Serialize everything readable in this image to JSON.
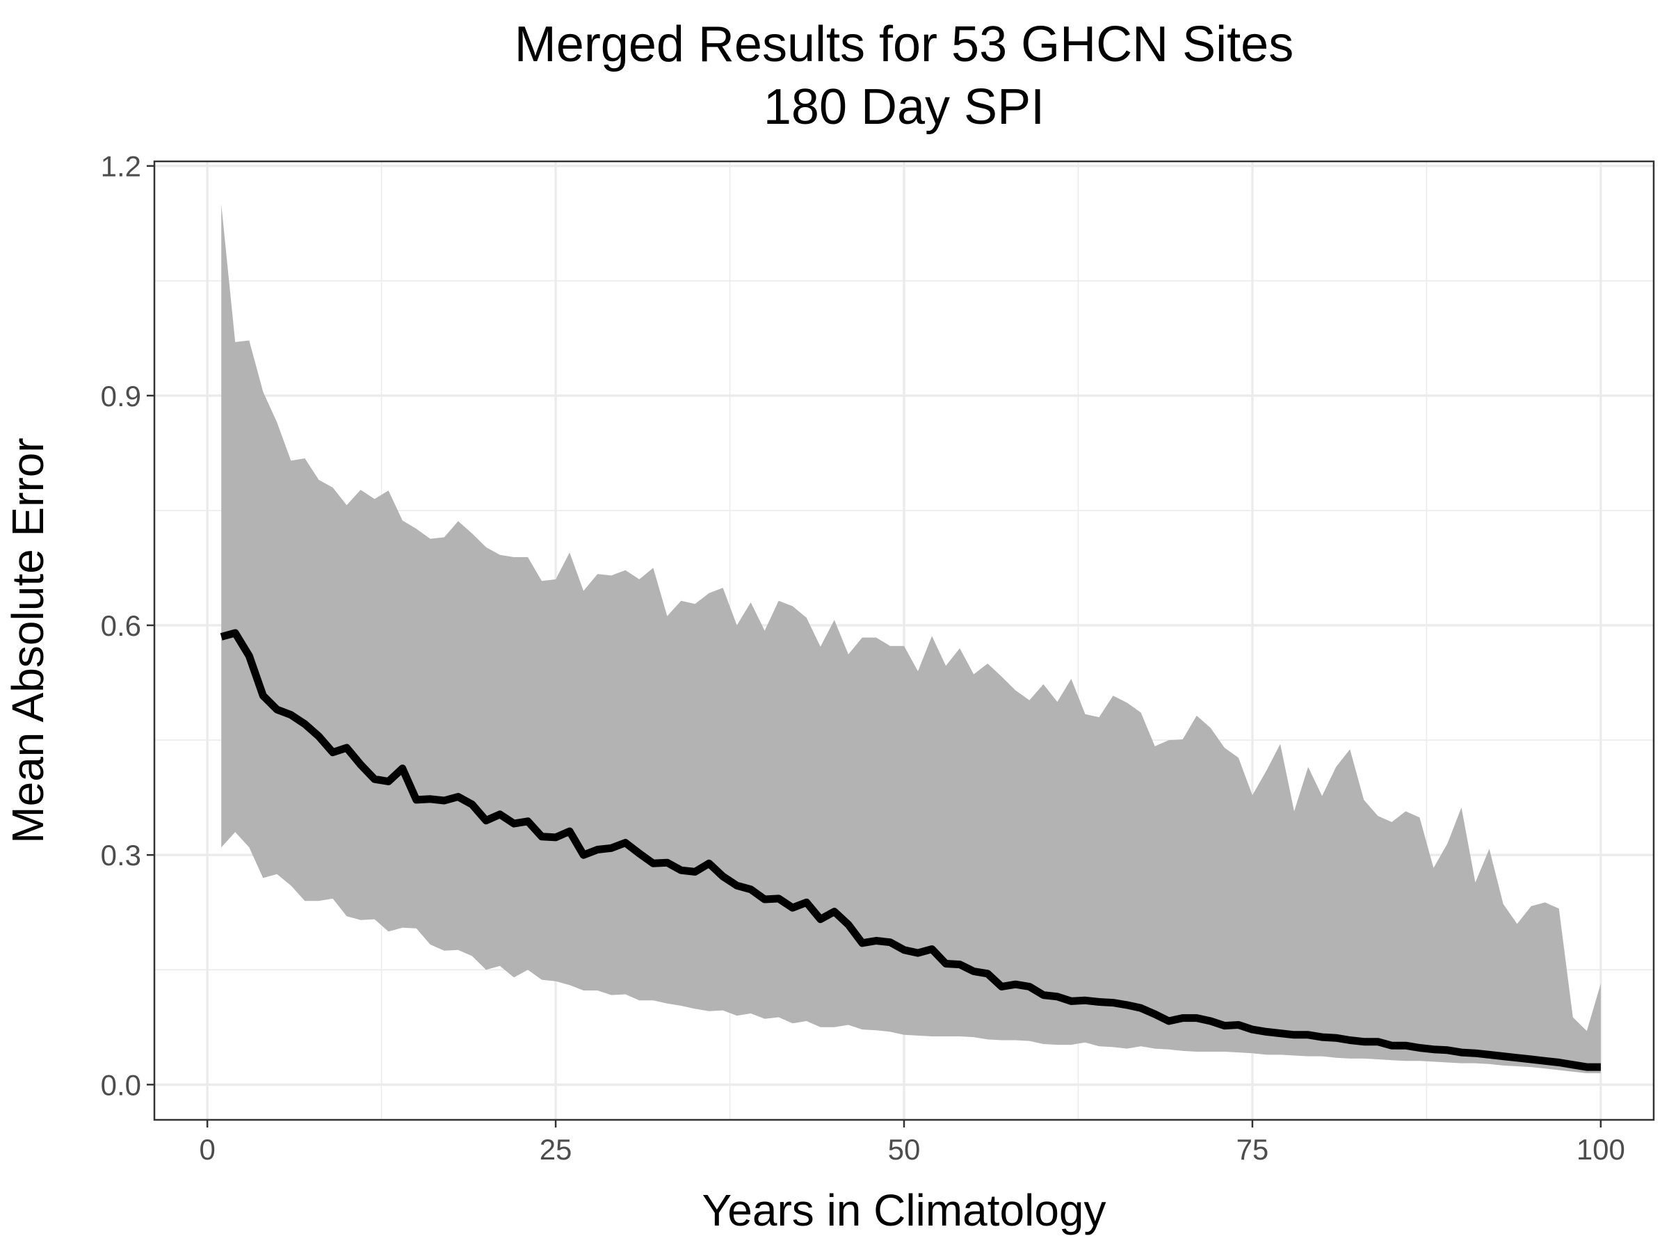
{
  "chart_data": {
    "type": "area",
    "title": "Merged Results for 53 GHCN Sites",
    "subtitle": "180 Day SPI",
    "xlabel": "Years in Climatology",
    "ylabel": "Mean Absolute Error",
    "xlim": [
      -3.8,
      103.8
    ],
    "ylim": [
      -0.046,
      1.206
    ],
    "x_ticks": [
      0,
      25,
      50,
      75,
      100
    ],
    "y_ticks": [
      0.0,
      0.3,
      0.6,
      0.9,
      1.2
    ],
    "x_tick_labels": [
      "0",
      "25",
      "50",
      "75",
      "100"
    ],
    "y_tick_labels": [
      "0.0",
      "0.3",
      "0.6",
      "0.9",
      "1.2"
    ],
    "grid": true,
    "legend": "none",
    "colors": {
      "band": "#b3b3b3",
      "line": "#000000",
      "grid": "#ebebeb",
      "panel_border": "#333333"
    },
    "series": [
      {
        "type": "band",
        "x": [
          1,
          2,
          3,
          4,
          5,
          6,
          7,
          8,
          9,
          10,
          11,
          12,
          13,
          14,
          15,
          16,
          17,
          18,
          19,
          20,
          21,
          22,
          23,
          24,
          25,
          26,
          27,
          28,
          29,
          30,
          31,
          32,
          33,
          34,
          35,
          36,
          37,
          38,
          39,
          40,
          41,
          42,
          43,
          44,
          45,
          46,
          47,
          48,
          49,
          50,
          51,
          52,
          53,
          54,
          55,
          56,
          57,
          58,
          59,
          60,
          61,
          62,
          63,
          64,
          65,
          66,
          67,
          68,
          69,
          70,
          71,
          72,
          73,
          74,
          75,
          76,
          77,
          78,
          79,
          80,
          81,
          82,
          83,
          84,
          85,
          86,
          87,
          88,
          89,
          90,
          91,
          92,
          93,
          94,
          95,
          96,
          97,
          98,
          99,
          100
        ],
        "lower": [
          0.31,
          0.33,
          0.31,
          0.27,
          0.275,
          0.26,
          0.24,
          0.24,
          0.243,
          0.22,
          0.215,
          0.216,
          0.2,
          0.205,
          0.204,
          0.183,
          0.175,
          0.176,
          0.168,
          0.15,
          0.155,
          0.14,
          0.15,
          0.137,
          0.135,
          0.13,
          0.123,
          0.123,
          0.117,
          0.118,
          0.11,
          0.11,
          0.106,
          0.103,
          0.099,
          0.096,
          0.097,
          0.09,
          0.093,
          0.086,
          0.088,
          0.08,
          0.083,
          0.075,
          0.075,
          0.078,
          0.072,
          0.071,
          0.069,
          0.065,
          0.064,
          0.063,
          0.063,
          0.063,
          0.062,
          0.059,
          0.058,
          0.058,
          0.057,
          0.053,
          0.052,
          0.052,
          0.055,
          0.05,
          0.049,
          0.047,
          0.05,
          0.047,
          0.046,
          0.044,
          0.043,
          0.043,
          0.043,
          0.042,
          0.041,
          0.039,
          0.039,
          0.038,
          0.037,
          0.037,
          0.035,
          0.034,
          0.034,
          0.033,
          0.032,
          0.031,
          0.031,
          0.03,
          0.029,
          0.028,
          0.028,
          0.027,
          0.025,
          0.024,
          0.023,
          0.021,
          0.019,
          0.017,
          0.015,
          0.015
        ],
        "upper": [
          1.15,
          0.97,
          0.972,
          0.905,
          0.865,
          0.815,
          0.818,
          0.79,
          0.78,
          0.757,
          0.777,
          0.765,
          0.776,
          0.737,
          0.726,
          0.713,
          0.715,
          0.736,
          0.72,
          0.702,
          0.692,
          0.689,
          0.689,
          0.658,
          0.66,
          0.695,
          0.645,
          0.667,
          0.665,
          0.672,
          0.66,
          0.675,
          0.612,
          0.632,
          0.628,
          0.642,
          0.649,
          0.6,
          0.63,
          0.593,
          0.632,
          0.625,
          0.61,
          0.572,
          0.607,
          0.562,
          0.584,
          0.584,
          0.573,
          0.573,
          0.54,
          0.586,
          0.547,
          0.57,
          0.536,
          0.55,
          0.533,
          0.515,
          0.502,
          0.523,
          0.5,
          0.53,
          0.484,
          0.48,
          0.508,
          0.499,
          0.486,
          0.442,
          0.45,
          0.451,
          0.482,
          0.466,
          0.44,
          0.427,
          0.378,
          0.41,
          0.445,
          0.357,
          0.415,
          0.377,
          0.415,
          0.438,
          0.372,
          0.351,
          0.343,
          0.357,
          0.349,
          0.283,
          0.315,
          0.362,
          0.264,
          0.308,
          0.236,
          0.21,
          0.233,
          0.238,
          0.23,
          0.088,
          0.07,
          0.132
        ]
      },
      {
        "type": "line",
        "x": [
          1,
          2,
          3,
          4,
          5,
          6,
          7,
          8,
          9,
          10,
          11,
          12,
          13,
          14,
          15,
          16,
          17,
          18,
          19,
          20,
          21,
          22,
          23,
          24,
          25,
          26,
          27,
          28,
          29,
          30,
          31,
          32,
          33,
          34,
          35,
          36,
          37,
          38,
          39,
          40,
          41,
          42,
          43,
          44,
          45,
          46,
          47,
          48,
          49,
          50,
          51,
          52,
          53,
          54,
          55,
          56,
          57,
          58,
          59,
          60,
          61,
          62,
          63,
          64,
          65,
          66,
          67,
          68,
          69,
          70,
          71,
          72,
          73,
          74,
          75,
          76,
          77,
          78,
          79,
          80,
          81,
          82,
          83,
          84,
          85,
          86,
          87,
          88,
          89,
          90,
          91,
          92,
          93,
          94,
          95,
          96,
          97,
          98,
          99,
          100
        ],
        "values": [
          0.585,
          0.59,
          0.56,
          0.508,
          0.49,
          0.483,
          0.471,
          0.455,
          0.434,
          0.44,
          0.418,
          0.399,
          0.396,
          0.413,
          0.372,
          0.373,
          0.371,
          0.376,
          0.366,
          0.345,
          0.353,
          0.341,
          0.344,
          0.324,
          0.323,
          0.331,
          0.3,
          0.307,
          0.309,
          0.316,
          0.302,
          0.289,
          0.29,
          0.28,
          0.278,
          0.289,
          0.272,
          0.26,
          0.255,
          0.242,
          0.243,
          0.231,
          0.238,
          0.216,
          0.226,
          0.209,
          0.185,
          0.188,
          0.186,
          0.176,
          0.172,
          0.177,
          0.158,
          0.157,
          0.148,
          0.145,
          0.128,
          0.131,
          0.128,
          0.117,
          0.115,
          0.109,
          0.11,
          0.108,
          0.107,
          0.104,
          0.1,
          0.092,
          0.083,
          0.087,
          0.087,
          0.083,
          0.077,
          0.078,
          0.072,
          0.069,
          0.067,
          0.065,
          0.065,
          0.062,
          0.061,
          0.058,
          0.056,
          0.056,
          0.051,
          0.051,
          0.048,
          0.046,
          0.045,
          0.042,
          0.041,
          0.039,
          0.037,
          0.035,
          0.033,
          0.031,
          0.029,
          0.026,
          0.023,
          0.023
        ]
      }
    ]
  }
}
